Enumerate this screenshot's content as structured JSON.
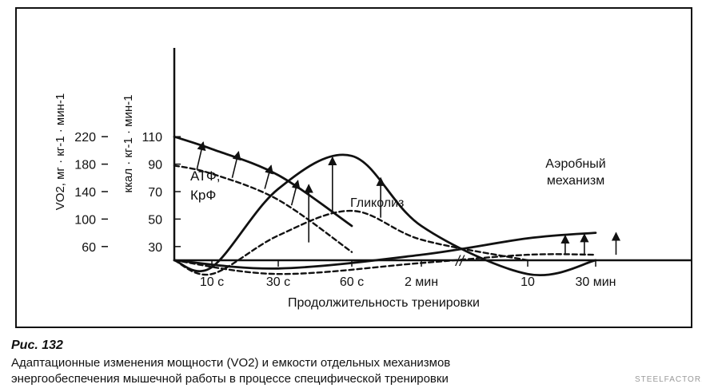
{
  "chart_data": {
    "type": "line",
    "xlabel": "Продолжительность тренировки",
    "x_ticks": [
      "10 с",
      "30 с",
      "60 с",
      "2 мин",
      "10",
      "30 мин"
    ],
    "y_left": {
      "label": "VO2, мг · кг-1 · мин-1",
      "ticks": [
        220,
        180,
        140,
        100,
        60
      ]
    },
    "y_right": {
      "label": "ккал · кг-1 · мин-1",
      "ticks": [
        110,
        90,
        70,
        50,
        30
      ]
    },
    "annotations": {
      "atp": [
        "АТФ,",
        "КрФ"
      ],
      "glycolysis": "Гликолиз",
      "aerobic": [
        "Аэробный",
        "механизм"
      ]
    },
    "axis_break": "//",
    "series": [
      {
        "group": "АТФ, КрФ",
        "state": "after",
        "x": [
          0,
          10,
          30,
          60
        ],
        "y": [
          110,
          101,
          82,
          45
        ]
      },
      {
        "group": "АТФ, КрФ",
        "state": "before",
        "x": [
          0,
          10,
          30,
          60
        ],
        "y": [
          89,
          83,
          64,
          26
        ]
      },
      {
        "group": "Гликолиз",
        "state": "after",
        "x": [
          0,
          10,
          30,
          60,
          120,
          600,
          1800
        ],
        "y": [
          0,
          15,
          72,
          96,
          45,
          10,
          0
        ]
      },
      {
        "group": "Гликолиз",
        "state": "before",
        "x": [
          0,
          10,
          30,
          60,
          120,
          600
        ],
        "y": [
          0,
          10,
          38,
          56,
          35,
          0
        ]
      },
      {
        "group": "Аэробный механизм",
        "state": "after",
        "x": [
          0,
          30,
          120,
          600,
          1800
        ],
        "y": [
          0,
          14,
          24,
          36,
          40
        ]
      },
      {
        "group": "Аэробный механизм",
        "state": "before",
        "x": [
          0,
          30,
          120,
          600,
          1800
        ],
        "y": [
          0,
          10,
          18,
          24,
          24
        ]
      }
    ]
  },
  "caption": {
    "title": "Рис. 132",
    "line1": "Адаптационные изменения мощности (VO2) и емкости отдельных механизмов",
    "line2": "энергообеспечения мышечной работы в процессе специфической тренировки"
  },
  "watermark": "STEELFACTOR.RU"
}
